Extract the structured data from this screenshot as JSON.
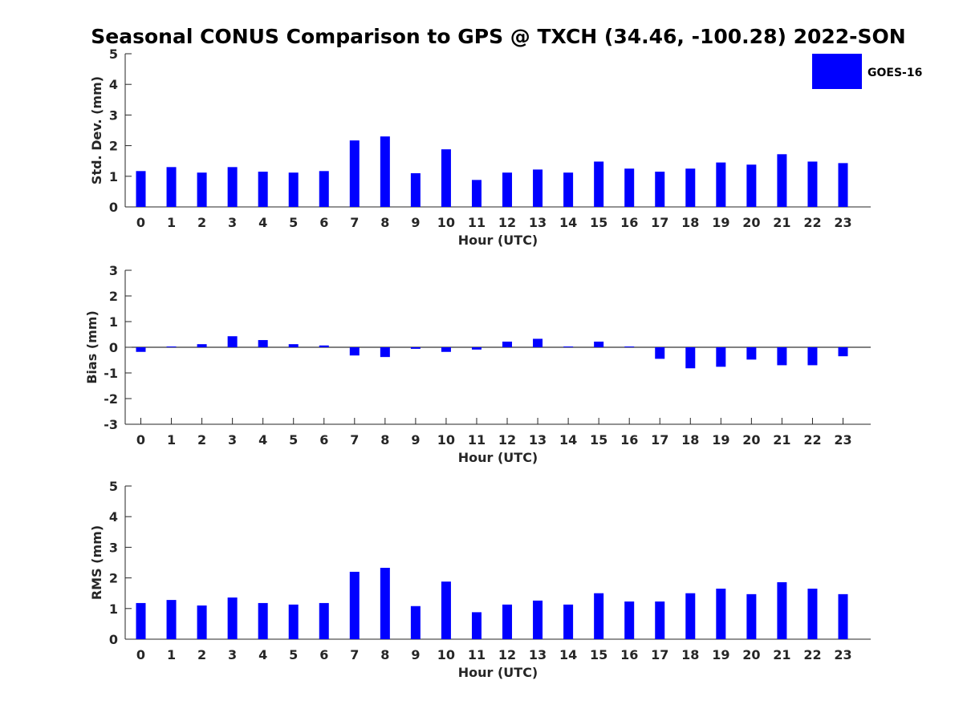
{
  "title": "Seasonal CONUS Comparison to GPS @ TXCH (34.46, -100.28) 2022-SON",
  "legend": {
    "label": "GOES-16",
    "color": "#0000ff",
    "placement": "top-right"
  },
  "chart_data": [
    {
      "type": "bar",
      "xlabel": "Hour (UTC)",
      "ylabel": "Std. Dev. (mm)",
      "ylim": [
        0,
        5
      ],
      "yticks": [
        0,
        1,
        2,
        3,
        4,
        5
      ],
      "categories": [
        "0",
        "1",
        "2",
        "3",
        "4",
        "5",
        "6",
        "7",
        "8",
        "9",
        "10",
        "11",
        "12",
        "13",
        "14",
        "15",
        "16",
        "17",
        "18",
        "19",
        "20",
        "21",
        "22",
        "23"
      ],
      "series": [
        {
          "name": "GOES-16",
          "values": [
            1.17,
            1.3,
            1.12,
            1.3,
            1.15,
            1.12,
            1.17,
            2.17,
            2.3,
            1.1,
            1.88,
            0.88,
            1.12,
            1.22,
            1.12,
            1.48,
            1.25,
            1.15,
            1.25,
            1.45,
            1.38,
            1.72,
            1.48,
            1.43
          ]
        }
      ]
    },
    {
      "type": "bar",
      "xlabel": "Hour (UTC)",
      "ylabel": "Bias (mm)",
      "ylim": [
        -3,
        3
      ],
      "yticks": [
        -3,
        -2,
        -1,
        0,
        1,
        2,
        3
      ],
      "categories": [
        "0",
        "1",
        "2",
        "3",
        "4",
        "5",
        "6",
        "7",
        "8",
        "9",
        "10",
        "11",
        "12",
        "13",
        "14",
        "15",
        "16",
        "17",
        "18",
        "19",
        "20",
        "21",
        "22",
        "23"
      ],
      "series": [
        {
          "name": "GOES-16",
          "values": [
            -0.18,
            0.03,
            0.12,
            0.43,
            0.28,
            0.12,
            0.07,
            -0.32,
            -0.38,
            -0.06,
            -0.18,
            -0.09,
            0.22,
            0.33,
            0.03,
            0.22,
            0.03,
            -0.45,
            -0.82,
            -0.76,
            -0.48,
            -0.7,
            -0.7,
            -0.35
          ]
        }
      ]
    },
    {
      "type": "bar",
      "xlabel": "Hour (UTC)",
      "ylabel": "RMS (mm)",
      "ylim": [
        0,
        5
      ],
      "yticks": [
        0,
        1,
        2,
        3,
        4,
        5
      ],
      "categories": [
        "0",
        "1",
        "2",
        "3",
        "4",
        "5",
        "6",
        "7",
        "8",
        "9",
        "10",
        "11",
        "12",
        "13",
        "14",
        "15",
        "16",
        "17",
        "18",
        "19",
        "20",
        "21",
        "22",
        "23"
      ],
      "series": [
        {
          "name": "GOES-16",
          "values": [
            1.18,
            1.28,
            1.1,
            1.36,
            1.18,
            1.13,
            1.18,
            2.2,
            2.33,
            1.08,
            1.88,
            0.88,
            1.13,
            1.26,
            1.13,
            1.5,
            1.23,
            1.23,
            1.5,
            1.65,
            1.47,
            1.86,
            1.65,
            1.47
          ]
        }
      ]
    }
  ]
}
